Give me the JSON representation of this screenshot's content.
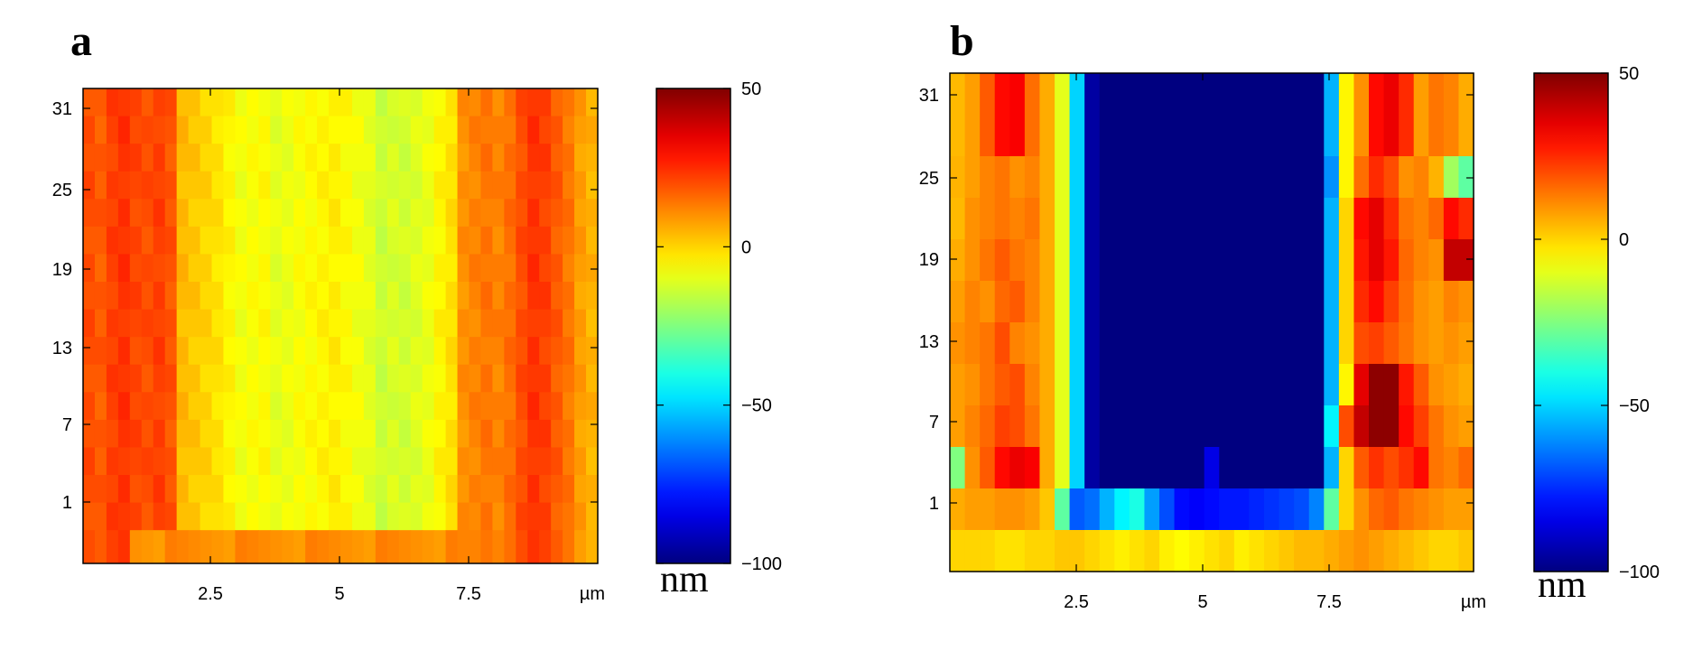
{
  "chart_data": [
    {
      "type": "heatmap",
      "panel_label": "a",
      "x_ticks": [
        "2.5",
        "5",
        "7.5"
      ],
      "x_unit_label": "µm",
      "y_ticks": [
        "1",
        "7",
        "13",
        "19",
        "25",
        "31"
      ],
      "colorbar": {
        "ticks": [
          "50",
          "0",
          "−50",
          "−100"
        ],
        "range": [
          -100,
          50
        ],
        "unit": "nm",
        "colormap": "jet"
      },
      "profile_nm": [
        20,
        18,
        22,
        24,
        21,
        20,
        22,
        19,
        4,
        2,
        0,
        -2,
        -5,
        -8,
        -7,
        -6,
        -10,
        -9,
        -7,
        -6,
        -5,
        -4,
        -6,
        -8,
        -10,
        -14,
        -12,
        -13,
        -11,
        -9,
        -5,
        -2,
        10,
        12,
        14,
        12,
        15,
        20,
        24,
        22,
        18,
        14,
        8,
        5
      ],
      "bottom_row_nm": 8
    },
    {
      "type": "heatmap",
      "panel_label": "b",
      "x_ticks": [
        "2.5",
        "5",
        "7.5"
      ],
      "x_unit_label": "µm",
      "y_ticks": [
        "1",
        "7",
        "13",
        "19",
        "25",
        "31"
      ],
      "colorbar": {
        "ticks": [
          "50",
          "0",
          "−50",
          "−100"
        ],
        "range": [
          -100,
          50
        ],
        "unit": "nm",
        "colormap": "jet"
      },
      "rows_nm": [
        [
          4,
          8,
          18,
          30,
          32,
          15,
          6,
          -10,
          -50,
          -95,
          -100,
          -100,
          -100,
          -100,
          -100,
          -100,
          -100,
          -100,
          -100,
          -100,
          -100,
          -100,
          -100,
          -100,
          -100,
          -55,
          -5,
          10,
          30,
          34,
          25,
          8,
          14,
          12,
          6
        ],
        [
          4,
          8,
          18,
          30,
          32,
          15,
          6,
          -10,
          -50,
          -95,
          -100,
          -100,
          -100,
          -100,
          -100,
          -100,
          -100,
          -100,
          -100,
          -100,
          -100,
          -100,
          -100,
          -100,
          -100,
          -55,
          -5,
          10,
          30,
          34,
          25,
          8,
          14,
          12,
          6
        ],
        [
          5,
          8,
          12,
          14,
          10,
          12,
          6,
          -10,
          -50,
          -95,
          -100,
          -100,
          -100,
          -100,
          -100,
          -100,
          -100,
          -100,
          -100,
          -100,
          -100,
          -100,
          -100,
          -100,
          -100,
          -60,
          -5,
          15,
          25,
          20,
          10,
          12,
          5,
          -20,
          -30
        ],
        [
          4,
          10,
          12,
          14,
          12,
          14,
          6,
          -10,
          -50,
          -95,
          -100,
          -100,
          -100,
          -100,
          -100,
          -100,
          -100,
          -100,
          -100,
          -100,
          -100,
          -100,
          -100,
          -100,
          -100,
          -55,
          0,
          30,
          35,
          25,
          14,
          12,
          16,
          30,
          25
        ],
        [
          6,
          10,
          14,
          18,
          14,
          12,
          6,
          -10,
          -50,
          -95,
          -100,
          -100,
          -100,
          -100,
          -100,
          -100,
          -100,
          -100,
          -100,
          -100,
          -100,
          -100,
          -100,
          -100,
          -100,
          -55,
          0,
          28,
          35,
          28,
          16,
          12,
          10,
          40,
          40
        ],
        [
          8,
          12,
          10,
          16,
          18,
          12,
          6,
          -10,
          -50,
          -95,
          -100,
          -100,
          -100,
          -100,
          -100,
          -100,
          -100,
          -100,
          -100,
          -100,
          -100,
          -100,
          -100,
          -100,
          -100,
          -55,
          0,
          25,
          30,
          22,
          15,
          10,
          8,
          12,
          10
        ],
        [
          10,
          12,
          14,
          20,
          12,
          10,
          6,
          -10,
          -50,
          -95,
          -100,
          -100,
          -100,
          -100,
          -100,
          -100,
          -100,
          -100,
          -100,
          -100,
          -100,
          -100,
          -100,
          -100,
          -100,
          -55,
          0,
          20,
          22,
          18,
          14,
          10,
          8,
          10,
          8
        ],
        [
          8,
          10,
          14,
          18,
          20,
          12,
          6,
          -10,
          -50,
          -95,
          -100,
          -100,
          -100,
          -100,
          -100,
          -100,
          -100,
          -100,
          -100,
          -100,
          -100,
          -100,
          -100,
          -100,
          -100,
          -55,
          -5,
          35,
          48,
          48,
          28,
          18,
          10,
          8,
          6
        ],
        [
          8,
          12,
          16,
          22,
          20,
          14,
          6,
          -10,
          -50,
          -95,
          -100,
          -100,
          -100,
          -100,
          -100,
          -100,
          -100,
          -100,
          -100,
          -100,
          -100,
          -100,
          -100,
          -100,
          -100,
          -45,
          20,
          40,
          48,
          48,
          30,
          22,
          14,
          10,
          8
        ],
        [
          -25,
          10,
          18,
          30,
          34,
          32,
          6,
          -10,
          -50,
          -95,
          -100,
          -100,
          -100,
          -100,
          -100,
          -100,
          -100,
          -85,
          -100,
          -100,
          -100,
          -100,
          -100,
          -100,
          -100,
          -55,
          0,
          18,
          24,
          20,
          24,
          30,
          14,
          12,
          16
        ],
        [
          6,
          8,
          8,
          10,
          10,
          8,
          2,
          -30,
          -68,
          -65,
          -55,
          -45,
          -40,
          -58,
          -70,
          -80,
          -82,
          -80,
          -78,
          -78,
          -76,
          -74,
          -72,
          -70,
          -62,
          -30,
          0,
          10,
          16,
          18,
          14,
          12,
          10,
          8,
          8
        ],
        [
          0,
          0,
          0,
          -2,
          -2,
          0,
          0,
          2,
          2,
          0,
          -2,
          -4,
          -2,
          0,
          -4,
          -6,
          -4,
          -2,
          0,
          -4,
          -2,
          0,
          2,
          4,
          4,
          6,
          8,
          10,
          8,
          6,
          4,
          2,
          0,
          0,
          2
        ]
      ]
    }
  ]
}
